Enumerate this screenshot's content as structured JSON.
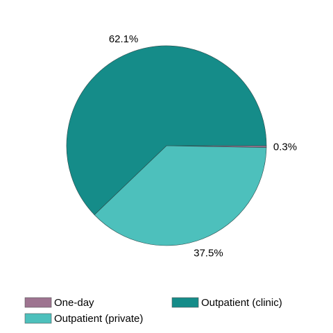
{
  "chart_data": {
    "type": "pie",
    "slices": [
      {
        "name": "One-day",
        "value": 0.3,
        "label": "0.3%",
        "color": "#9E7490"
      },
      {
        "name": "Outpatient (private)",
        "value": 37.5,
        "label": "37.5%",
        "color": "#4DC0BC"
      },
      {
        "name": "Outpatient (clinic)",
        "value": 62.1,
        "label": "62.1%",
        "color": "#158C89"
      }
    ],
    "start": "3 o'clock",
    "direction": "clockwise",
    "legend_position": "bottom",
    "legend": [
      {
        "name": "One-day",
        "color": "#9E7490"
      },
      {
        "name": "Outpatient (clinic)",
        "color": "#158C89"
      },
      {
        "name": "Outpatient (private)",
        "color": "#4DC0BC"
      }
    ]
  }
}
